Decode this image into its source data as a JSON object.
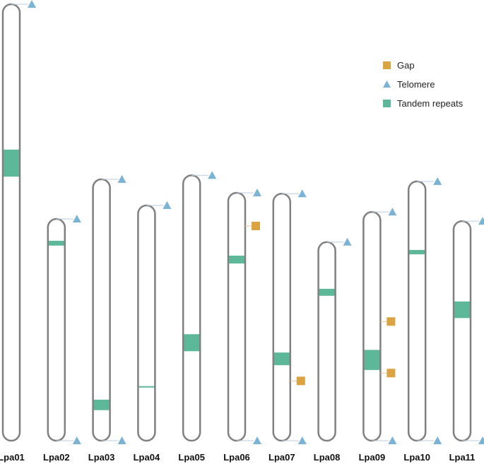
{
  "colors": {
    "outline": "#808080",
    "gap": "#D9A441",
    "telomere": "#7AB3D3",
    "tandem": "#5DB89A",
    "connector": "#B8CCE0"
  },
  "legend": {
    "items": [
      {
        "label": "Gap",
        "icon": "square",
        "key": "gap"
      },
      {
        "label": "Telomere",
        "icon": "triangle",
        "key": "telomere"
      },
      {
        "label": "Tandem repeats",
        "icon": "square",
        "key": "tandem"
      }
    ]
  },
  "chromosomes": [
    {
      "name": "Lpa01",
      "length": 100,
      "tandem": [
        [
          33.3,
          39.5
        ]
      ],
      "gaps": [],
      "telomeres": [
        "top"
      ]
    },
    {
      "name": "Lpa02",
      "length": 50.8,
      "tandem": [
        [
          5.0,
          6.1
        ]
      ],
      "gaps": [],
      "telomeres": [
        "top",
        "bottom"
      ]
    },
    {
      "name": "Lpa03",
      "length": 59.9,
      "tandem": [
        [
          50.5,
          52.9
        ]
      ],
      "gaps": [],
      "telomeres": [
        "top",
        "bottom"
      ]
    },
    {
      "name": "Lpa04",
      "length": 53.9,
      "tandem": [
        [
          41.4,
          41.7
        ]
      ],
      "gaps": [],
      "telomeres": [
        "top"
      ]
    },
    {
      "name": "Lpa05",
      "length": 60.8,
      "tandem": [
        [
          36.4,
          40.3
        ]
      ],
      "gaps": [],
      "telomeres": [
        "top"
      ]
    },
    {
      "name": "Lpa06",
      "length": 56.8,
      "tandem": [
        [
          14.4,
          16.2
        ]
      ],
      "gaps": [
        7.6
      ],
      "telomeres": [
        "top",
        "bottom"
      ]
    },
    {
      "name": "Lpa07",
      "length": 56.6,
      "tandem": [
        [
          36.4,
          39.3
        ]
      ],
      "gaps": [
        42.9
      ],
      "telomeres": [
        "top",
        "bottom"
      ]
    },
    {
      "name": "Lpa08",
      "length": 45.5,
      "tandem": [
        [
          10.7,
          12.3
        ]
      ],
      "gaps": [],
      "telomeres": [
        "top"
      ]
    },
    {
      "name": "Lpa09",
      "length": 52.4,
      "tandem": [
        [
          31.6,
          36.2
        ]
      ],
      "gaps": [
        25.1,
        36.9
      ],
      "telomeres": [
        "top",
        "bottom"
      ]
    },
    {
      "name": "Lpa10",
      "length": 59.4,
      "tandem": [
        [
          15.7,
          16.7
        ]
      ],
      "gaps": [],
      "telomeres": [
        "top",
        "bottom"
      ]
    },
    {
      "name": "Lpa11",
      "length": 50.3,
      "tandem": [
        [
          18.4,
          22.2
        ]
      ],
      "gaps": [],
      "telomeres": [
        "top",
        "bottom"
      ]
    }
  ]
}
